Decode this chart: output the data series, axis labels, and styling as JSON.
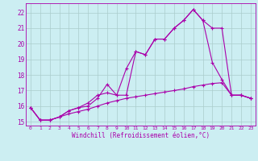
{
  "xlabel": "Windchill (Refroidissement éolien,°C)",
  "bg_color": "#cceef2",
  "grid_color": "#aacccc",
  "line_color": "#aa00aa",
  "xlim": [
    -0.5,
    23.5
  ],
  "ylim": [
    14.75,
    22.6
  ],
  "yticks": [
    15,
    16,
    17,
    18,
    19,
    20,
    21,
    22
  ],
  "xticks": [
    0,
    1,
    2,
    3,
    4,
    5,
    6,
    7,
    8,
    9,
    10,
    11,
    12,
    13,
    14,
    15,
    16,
    17,
    18,
    19,
    20,
    21,
    22,
    23
  ],
  "line1_x": [
    0,
    1,
    2,
    3,
    4,
    5,
    6,
    7,
    8,
    9,
    10,
    11,
    12,
    13,
    14,
    15,
    16,
    17,
    18,
    19,
    20,
    21,
    22,
    23
  ],
  "line1_y": [
    15.9,
    15.1,
    15.1,
    15.3,
    15.7,
    15.9,
    16.2,
    16.7,
    16.85,
    16.7,
    16.7,
    19.5,
    19.3,
    20.3,
    20.3,
    21.0,
    21.5,
    22.2,
    21.5,
    21.0,
    21.0,
    16.7,
    16.7,
    16.5
  ],
  "line2_x": [
    0,
    1,
    2,
    3,
    4,
    5,
    6,
    7,
    8,
    9,
    10,
    11,
    12,
    13,
    14,
    15,
    16,
    17,
    18,
    19,
    20,
    21,
    22,
    23
  ],
  "line2_y": [
    15.9,
    15.1,
    15.1,
    15.3,
    15.7,
    15.9,
    16.0,
    16.5,
    17.4,
    16.7,
    18.4,
    19.5,
    19.3,
    20.3,
    20.3,
    21.0,
    21.5,
    22.2,
    21.5,
    18.8,
    17.7,
    16.7,
    16.7,
    16.5
  ],
  "line3_x": [
    0,
    1,
    2,
    3,
    4,
    5,
    6,
    7,
    8,
    9,
    10,
    11,
    12,
    13,
    14,
    15,
    16,
    17,
    18,
    19,
    20,
    21,
    22,
    23
  ],
  "line3_y": [
    15.9,
    15.1,
    15.1,
    15.3,
    15.5,
    15.65,
    15.8,
    16.0,
    16.2,
    16.35,
    16.5,
    16.6,
    16.7,
    16.8,
    16.9,
    17.0,
    17.1,
    17.25,
    17.35,
    17.45,
    17.5,
    16.7,
    16.7,
    16.5
  ]
}
